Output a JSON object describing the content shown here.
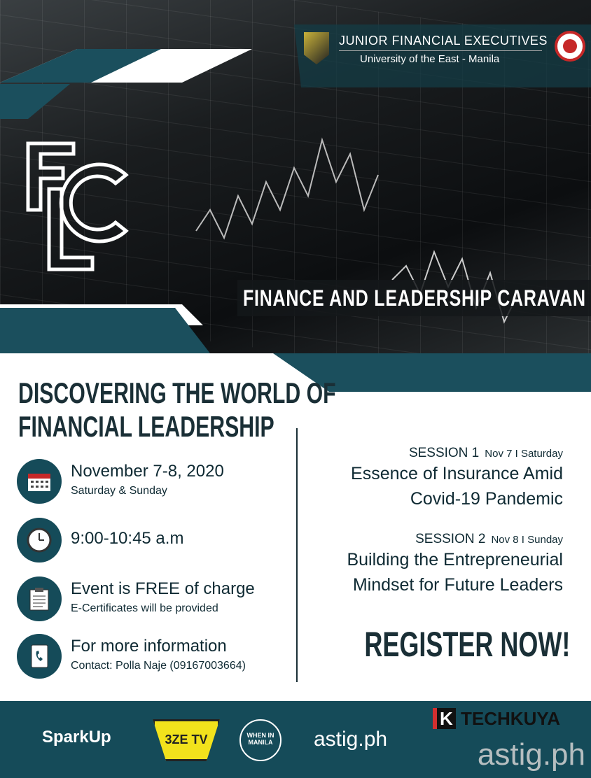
{
  "header": {
    "org": "JUNIOR FINANCIAL EXECUTIVES",
    "university": "University of the East - Manila"
  },
  "hero": {
    "logo": "FLC",
    "banner": "FINANCE AND  LEADERSHIP CARAVAN"
  },
  "heading": [
    "DISCOVERING THE WORLD OF",
    "FINANCIAL LEADERSHIP"
  ],
  "info": [
    {
      "icon": "calendar-icon",
      "main": "November 7-8, 2020",
      "sub": "Saturday & Sunday"
    },
    {
      "icon": "clock-icon",
      "main": "9:00-10:45 a.m",
      "sub": ""
    },
    {
      "icon": "clipboard-icon",
      "main": "Event is FREE of charge",
      "sub": "E-Certificates will be provided"
    },
    {
      "icon": "phone-book-icon",
      "main": "For more information",
      "sub": "Contact: Polla Naje (09167003664)"
    }
  ],
  "sessions": [
    {
      "label": "SESSION 1",
      "date": "Nov 7  I  Saturday",
      "title": [
        "Essence of Insurance Amid",
        "Covid-19 Pandemic"
      ]
    },
    {
      "label": "SESSION 2",
      "date": "Nov 8 I  Sunday",
      "title": [
        "Building the Entrepreneurial",
        "Mindset for Future Leaders"
      ]
    }
  ],
  "cta": "REGISTER NOW!",
  "sponsors": [
    "SparkUp",
    "3ZE TV",
    "WHEN IN MANILA",
    "astig.ph",
    "TECHKUYA"
  ],
  "watermark": "astig.ph",
  "colors": {
    "teal": "#154b59",
    "text": "#1a2f36"
  }
}
